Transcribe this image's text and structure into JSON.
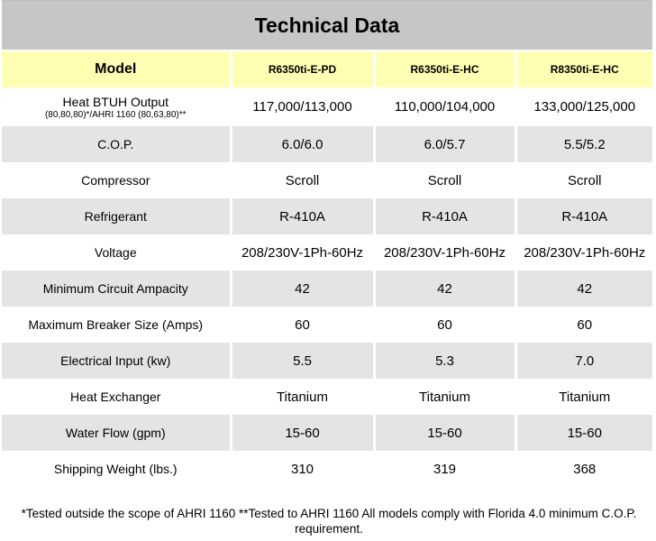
{
  "title": "Technical Data",
  "header": {
    "label": "Model",
    "models": [
      "R6350ti-E-PD",
      "R6350ti-E-HC",
      "R8350ti-E-HC"
    ]
  },
  "rows": [
    {
      "label": "Heat BTUH Output",
      "sublabel": "(80,80,80)*/AHRI 1160 (80,63,80)**",
      "values": [
        "117,000/113,000",
        "110,000/104,000",
        "133,000/125,000"
      ]
    },
    {
      "label": "C.O.P.",
      "values": [
        "6.0/6.0",
        "6.0/5.7",
        "5.5/5.2"
      ]
    },
    {
      "label": "Compressor",
      "values": [
        "Scroll",
        "Scroll",
        "Scroll"
      ]
    },
    {
      "label": "Refrigerant",
      "values": [
        "R-410A",
        "R-410A",
        "R-410A"
      ]
    },
    {
      "label": "Voltage",
      "values": [
        "208/230V-1Ph-60Hz",
        "208/230V-1Ph-60Hz",
        "208/230V-1Ph-60Hz"
      ]
    },
    {
      "label": "Minimum Circuit Ampacity",
      "values": [
        "42",
        "42",
        "42"
      ]
    },
    {
      "label": "Maximum Breaker Size (Amps)",
      "values": [
        "60",
        "60",
        "60"
      ]
    },
    {
      "label": "Electrical Input (kw)",
      "values": [
        "5.5",
        "5.3",
        "7.0"
      ]
    },
    {
      "label": "Heat Exchanger",
      "values": [
        "Titanium",
        "Titanium",
        "Titanium"
      ]
    },
    {
      "label": "Water Flow (gpm)",
      "values": [
        "15-60",
        "15-60",
        "15-60"
      ]
    },
    {
      "label": "Shipping Weight (lbs.)",
      "values": [
        "310",
        "319",
        "368"
      ]
    }
  ],
  "footnote": "*Tested outside the scope of AHRI 1160 **Tested to AHRI 1160 All models comply with Florida 4.0 minimum C.O.P. requirement.",
  "colors": {
    "title_bg": "#c6c6c6",
    "header_bg": "#ffffb3",
    "shaded_row_bg": "#e4e4e4"
  }
}
